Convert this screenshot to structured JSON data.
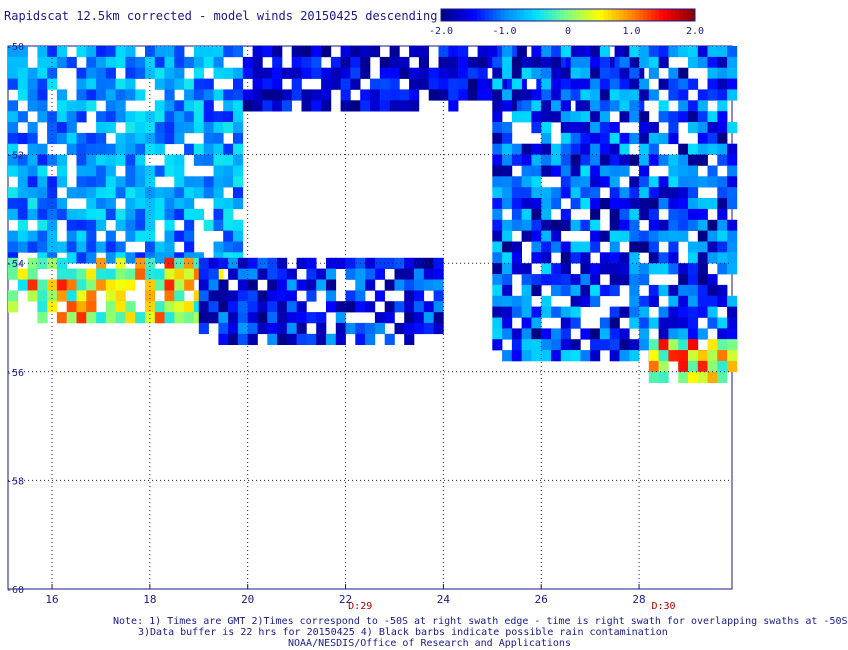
{
  "title": "Rapidscat 12.5km corrected - model winds 20150425 descending",
  "colorbar": {
    "ticks": [
      "-2.0",
      "-1.0",
      "0",
      "1.0",
      "2.0"
    ],
    "min": -2.0,
    "max": 2.0,
    "colors": [
      "#000080",
      "#0000ff",
      "#0088ff",
      "#00e0ff",
      "#80ff80",
      "#ffff00",
      "#ff8800",
      "#ff0000",
      "#800000"
    ]
  },
  "notes": {
    "line1": "Note: 1) Times are GMT 2)Times correspond to -50S at right swath edge - time is right swath for overlapping swaths at -50S",
    "line2": "3)Data buffer is 22 hrs for 20150425 4) Black barbs indicate possible rain contamination",
    "line3": "NOAA/NESDIS/Office of Research and Applications"
  },
  "time_labels": [
    {
      "text": "D:29",
      "lon": 22.3
    },
    {
      "text": "D:30",
      "lon": 28.5
    }
  ],
  "chart_data": {
    "type": "heatmap",
    "title": "Rapidscat 12.5km corrected - model winds 20150425 descending",
    "x_ticks": [
      16,
      18,
      20,
      22,
      24,
      26,
      28
    ],
    "y_ticks": [
      "-50",
      "-52",
      "-54",
      "-56",
      "-58",
      "-60"
    ],
    "xlim": [
      15.1,
      29.9
    ],
    "ylim": [
      -60,
      -50
    ],
    "grid": true,
    "value_range": [
      -2.0,
      2.0
    ],
    "cell_size_deg": [
      0.2,
      0.2
    ],
    "regions": [
      {
        "name": "west upper",
        "lon": [
          15.1,
          19.9
        ],
        "lat": [
          -54.0,
          -50.0
        ],
        "value_range": [
          -1.4,
          -0.4
        ]
      },
      {
        "name": "west band",
        "lon": [
          15.1,
          19.4
        ],
        "lat": [
          -55.0,
          -53.9
        ],
        "value_range": [
          -0.5,
          1.4
        ]
      },
      {
        "name": "central north",
        "lon": [
          19.9,
          28.0
        ],
        "lat": [
          -51.2,
          -50.0
        ],
        "value_range": [
          -2.0,
          -1.2
        ]
      },
      {
        "name": "central south",
        "lon": [
          19.0,
          24.0
        ],
        "lat": [
          -55.4,
          -53.9
        ],
        "value_range": [
          -2.0,
          -0.8
        ]
      },
      {
        "name": "east",
        "lon": [
          25.0,
          29.9
        ],
        "lat": [
          -55.8,
          -50.0
        ],
        "value_range": [
          -2.0,
          -0.5
        ]
      },
      {
        "name": "southeast patch",
        "lon": [
          28.2,
          29.9
        ],
        "lat": [
          -56.2,
          -55.4
        ],
        "value_range": [
          -0.4,
          1.5
        ]
      }
    ]
  }
}
